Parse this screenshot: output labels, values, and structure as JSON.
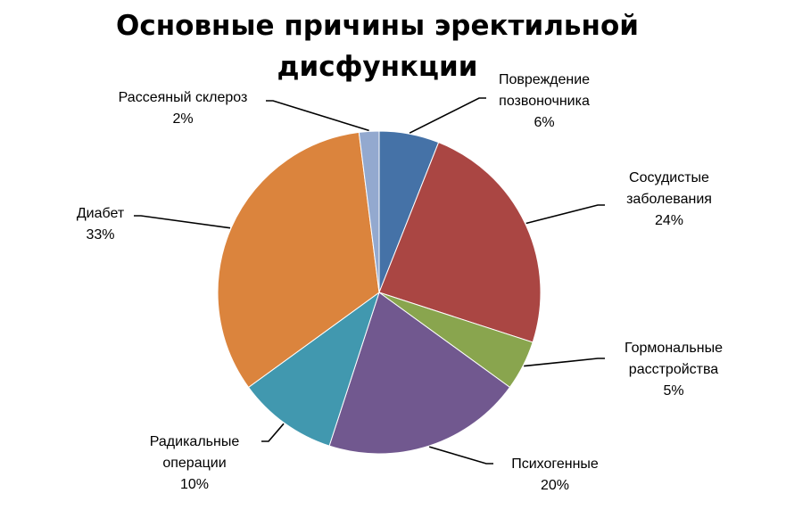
{
  "chart_data": {
    "type": "pie",
    "title_lines": [
      "Основные причины эректильной",
      "дисфункции"
    ],
    "start_angle_deg": 0,
    "direction": "clockwise",
    "slices": [
      {
        "label_lines": [
          "Повреждение",
          "позвоночника"
        ],
        "percent_label": "6%",
        "value": 6,
        "color": "#4572a7"
      },
      {
        "label_lines": [
          "Сосудистые",
          "заболевания"
        ],
        "percent_label": "24%",
        "value": 24,
        "color": "#aa4643"
      },
      {
        "label_lines": [
          "Гормональные",
          "расстройства"
        ],
        "percent_label": "5%",
        "value": 5,
        "color": "#89a54e"
      },
      {
        "label_lines": [
          "Психогенные"
        ],
        "percent_label": "20%",
        "value": 20,
        "color": "#71588f"
      },
      {
        "label_lines": [
          "Радикальные",
          "операции"
        ],
        "percent_label": "10%",
        "value": 10,
        "color": "#4198af"
      },
      {
        "label_lines": [
          "Диабет"
        ],
        "percent_label": "33%",
        "value": 33,
        "color": "#db843d"
      },
      {
        "label_lines": [
          "Рассеяный склероз"
        ],
        "percent_label": "2%",
        "value": 2,
        "color": "#93a9cf"
      }
    ]
  }
}
